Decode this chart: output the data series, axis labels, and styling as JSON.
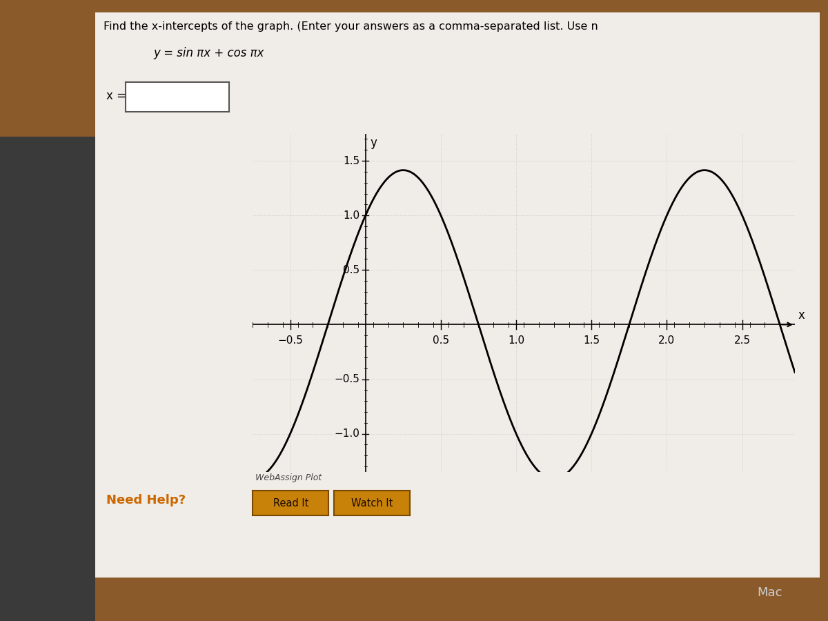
{
  "title_text": "Find the x-intercepts of the graph. (Enter your answers as a comma-separated list. Use n",
  "equation_text": "y = sin πx + cos πx",
  "xlabel": "x",
  "ylabel": "y",
  "xlim": [
    -0.75,
    2.85
  ],
  "ylim": [
    -1.35,
    1.75
  ],
  "xticks": [
    -0.5,
    0.5,
    1.0,
    1.5,
    2.0,
    2.5
  ],
  "yticks": [
    -1.0,
    -0.5,
    0.5,
    1.0,
    1.5
  ],
  "frame_color": "#8B5A2B",
  "dark_sidebar_color": "#3a3a3a",
  "white_bg_color": "#f0ede8",
  "plot_bg_color": "#f0ede8",
  "curve_color": "#000000",
  "curve_linewidth": 2.0,
  "webassign_label": "WebAssign Plot",
  "need_help_text": "Need Help?",
  "need_help_color": "#cc6600",
  "button1_text": "Read It",
  "button2_text": "Watch It",
  "button_bg": "#c8820a",
  "button_text_color": "#1a0a00",
  "input_label": "x =",
  "fig_width": 12,
  "fig_height": 9,
  "mac_text_color": "#cccccc"
}
